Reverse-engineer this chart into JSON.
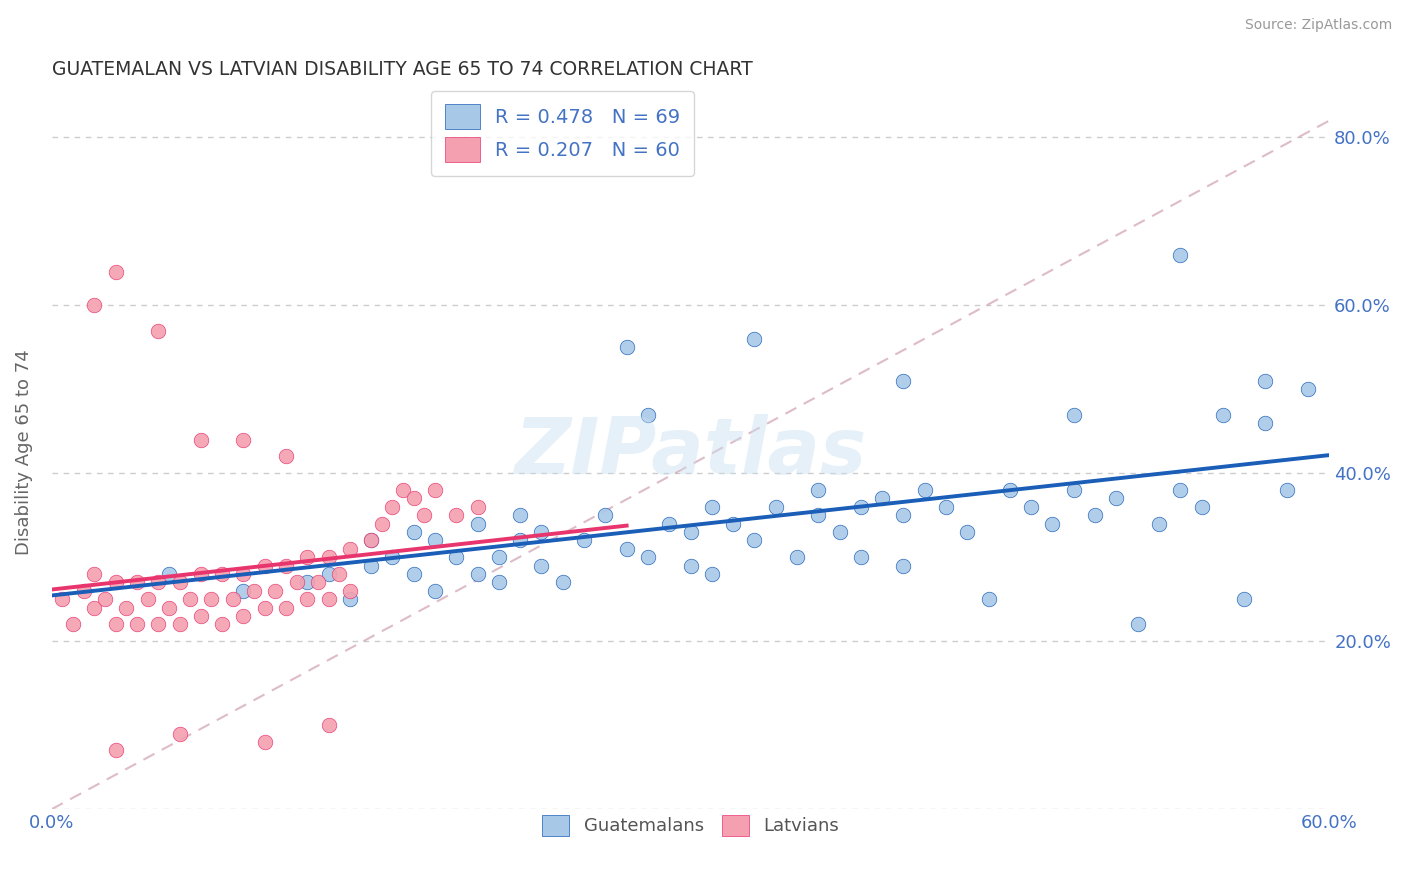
{
  "title": "GUATEMALAN VS LATVIAN DISABILITY AGE 65 TO 74 CORRELATION CHART",
  "source_text": "Source: ZipAtlas.com",
  "ylabel": "Disability Age 65 to 74",
  "xlim": [
    0.0,
    0.6
  ],
  "ylim": [
    0.0,
    0.85
  ],
  "blue_color": "#a8c8e8",
  "pink_color": "#f4a0b0",
  "blue_line_color": "#1a5eb8",
  "pink_line_color": "#e8356d",
  "blue_R": 0.478,
  "blue_N": 69,
  "pink_R": 0.207,
  "pink_N": 60,
  "legend_labels": [
    "Guatemalans",
    "Latvians"
  ],
  "watermark": "ZIPatlas",
  "blue_scatter_x": [
    0.055,
    0.09,
    0.12,
    0.13,
    0.14,
    0.15,
    0.15,
    0.16,
    0.17,
    0.17,
    0.18,
    0.18,
    0.19,
    0.2,
    0.2,
    0.21,
    0.21,
    0.22,
    0.22,
    0.23,
    0.23,
    0.24,
    0.25,
    0.26,
    0.27,
    0.28,
    0.28,
    0.29,
    0.3,
    0.3,
    0.31,
    0.31,
    0.32,
    0.33,
    0.34,
    0.35,
    0.36,
    0.36,
    0.37,
    0.38,
    0.38,
    0.39,
    0.4,
    0.4,
    0.41,
    0.42,
    0.43,
    0.44,
    0.45,
    0.46,
    0.47,
    0.48,
    0.49,
    0.5,
    0.51,
    0.52,
    0.53,
    0.54,
    0.55,
    0.56,
    0.57,
    0.58,
    0.59,
    0.27,
    0.33,
    0.4,
    0.48,
    0.53,
    0.57
  ],
  "blue_scatter_y": [
    0.28,
    0.26,
    0.27,
    0.28,
    0.25,
    0.29,
    0.32,
    0.3,
    0.28,
    0.33,
    0.32,
    0.26,
    0.3,
    0.28,
    0.34,
    0.3,
    0.27,
    0.32,
    0.35,
    0.29,
    0.33,
    0.27,
    0.32,
    0.35,
    0.31,
    0.47,
    0.3,
    0.34,
    0.29,
    0.33,
    0.36,
    0.28,
    0.34,
    0.32,
    0.36,
    0.3,
    0.35,
    0.38,
    0.33,
    0.36,
    0.3,
    0.37,
    0.35,
    0.29,
    0.38,
    0.36,
    0.33,
    0.25,
    0.38,
    0.36,
    0.34,
    0.38,
    0.35,
    0.37,
    0.22,
    0.34,
    0.38,
    0.36,
    0.47,
    0.25,
    0.46,
    0.38,
    0.5,
    0.55,
    0.56,
    0.51,
    0.47,
    0.66,
    0.51
  ],
  "pink_scatter_x": [
    0.005,
    0.01,
    0.015,
    0.02,
    0.02,
    0.025,
    0.03,
    0.03,
    0.035,
    0.04,
    0.04,
    0.045,
    0.05,
    0.05,
    0.055,
    0.06,
    0.06,
    0.065,
    0.07,
    0.07,
    0.075,
    0.08,
    0.08,
    0.085,
    0.09,
    0.09,
    0.095,
    0.1,
    0.1,
    0.105,
    0.11,
    0.11,
    0.115,
    0.12,
    0.12,
    0.125,
    0.13,
    0.13,
    0.135,
    0.14,
    0.14,
    0.15,
    0.155,
    0.16,
    0.165,
    0.17,
    0.175,
    0.18,
    0.19,
    0.2,
    0.02,
    0.03,
    0.05,
    0.07,
    0.09,
    0.11,
    0.03,
    0.06,
    0.1,
    0.13
  ],
  "pink_scatter_y": [
    0.25,
    0.22,
    0.26,
    0.24,
    0.28,
    0.25,
    0.22,
    0.27,
    0.24,
    0.22,
    0.27,
    0.25,
    0.22,
    0.27,
    0.24,
    0.22,
    0.27,
    0.25,
    0.23,
    0.28,
    0.25,
    0.22,
    0.28,
    0.25,
    0.23,
    0.28,
    0.26,
    0.24,
    0.29,
    0.26,
    0.24,
    0.29,
    0.27,
    0.25,
    0.3,
    0.27,
    0.25,
    0.3,
    0.28,
    0.26,
    0.31,
    0.32,
    0.34,
    0.36,
    0.38,
    0.37,
    0.35,
    0.38,
    0.35,
    0.36,
    0.6,
    0.64,
    0.57,
    0.44,
    0.44,
    0.42,
    0.07,
    0.09,
    0.08,
    0.1
  ]
}
